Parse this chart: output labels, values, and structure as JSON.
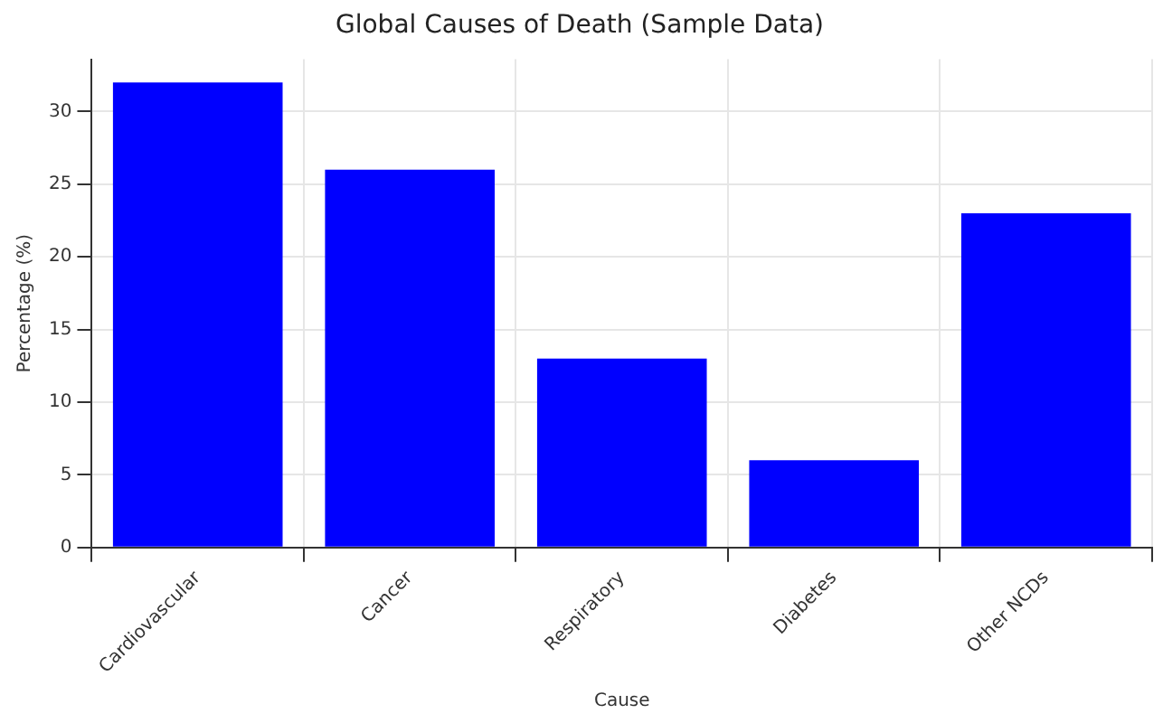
{
  "chart_data": {
    "type": "bar",
    "title": "Global Causes of Death (Sample Data)",
    "xlabel": "Cause",
    "ylabel": "Percentage (%)",
    "categories": [
      "Cardiovascular",
      "Cancer",
      "Respiratory",
      "Diabetes",
      "Other NCDs"
    ],
    "values": [
      32,
      26,
      13,
      6,
      23
    ],
    "color": "#0000ff",
    "ylim": [
      0,
      33.6
    ],
    "yticks": [
      0,
      5,
      10,
      15,
      20,
      25,
      30
    ],
    "grid": true
  }
}
